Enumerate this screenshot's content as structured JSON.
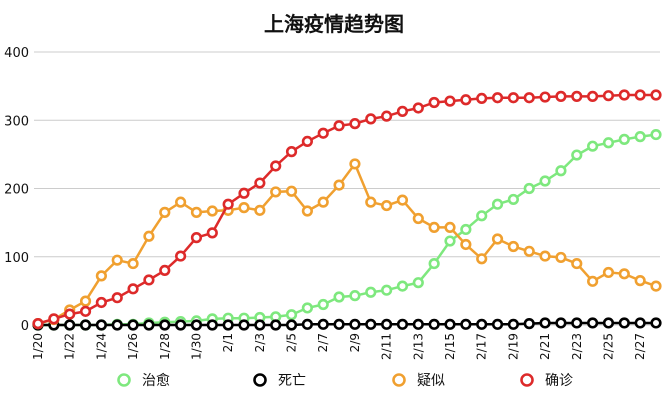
{
  "chart_data": {
    "type": "line",
    "title": "上海疫情趋势图",
    "xlabel": "",
    "ylabel": "",
    "ylim": [
      0,
      400
    ],
    "yticks": [
      0,
      100,
      200,
      300,
      400
    ],
    "grid": "horizontal",
    "legend_position": "bottom",
    "x": [
      "1/20",
      "1/21",
      "1/22",
      "1/23",
      "1/24",
      "1/25",
      "1/26",
      "1/27",
      "1/28",
      "1/29",
      "1/30",
      "1/31",
      "2/1",
      "2/2",
      "2/3",
      "2/4",
      "2/5",
      "2/6",
      "2/7",
      "2/8",
      "2/9",
      "2/10",
      "2/11",
      "2/12",
      "2/13",
      "2/14",
      "2/15",
      "2/16",
      "2/17",
      "2/18",
      "2/19",
      "2/20",
      "2/21",
      "2/22",
      "2/23",
      "2/24",
      "2/25",
      "2/26",
      "2/27",
      "2/28"
    ],
    "xticks": [
      "1/20",
      "1/22",
      "1/24",
      "1/26",
      "1/28",
      "1/30",
      "2/1",
      "2/3",
      "2/5",
      "2/7",
      "2/9",
      "2/11",
      "2/13",
      "2/15",
      "2/17",
      "2/19",
      "2/21",
      "2/23",
      "2/25",
      "2/27"
    ],
    "series": [
      {
        "name": "治愈",
        "color": "#7ee87e",
        "values": [
          0,
          0,
          0,
          0,
          0,
          1,
          1,
          3,
          4,
          5,
          6,
          9,
          10,
          10,
          11,
          12,
          15,
          25,
          30,
          41,
          43,
          48,
          51,
          57,
          62,
          90,
          123,
          140,
          160,
          177,
          184,
          200,
          211,
          226,
          249,
          262,
          267,
          272,
          276,
          279
        ]
      },
      {
        "name": "死亡",
        "color": "#000000",
        "values": [
          0,
          0,
          0,
          0,
          0,
          0,
          0,
          0,
          0,
          0,
          0,
          0,
          0,
          0,
          0,
          0,
          0,
          1,
          1,
          1,
          1,
          1,
          1,
          1,
          1,
          1,
          1,
          1,
          1,
          1,
          1,
          2,
          3,
          3,
          3,
          3,
          3,
          3,
          3,
          3
        ]
      },
      {
        "name": "疑似",
        "color": "#f0a030",
        "values": [
          2,
          8,
          22,
          35,
          72,
          95,
          90,
          130,
          165,
          180,
          165,
          167,
          168,
          172,
          168,
          195,
          196,
          167,
          180,
          205,
          236,
          180,
          175,
          183,
          156,
          143,
          143,
          118,
          97,
          126,
          115,
          108,
          101,
          99,
          90,
          64,
          77,
          75,
          65,
          57
        ]
      },
      {
        "name": "确诊",
        "color": "#dd2a2a",
        "values": [
          2,
          9,
          16,
          20,
          33,
          40,
          53,
          66,
          80,
          101,
          128,
          135,
          177,
          193,
          208,
          233,
          254,
          269,
          281,
          292,
          295,
          302,
          306,
          313,
          318,
          326,
          328,
          330,
          332,
          333,
          333,
          333,
          334,
          335,
          335,
          335,
          336,
          337,
          337,
          337
        ]
      }
    ]
  }
}
